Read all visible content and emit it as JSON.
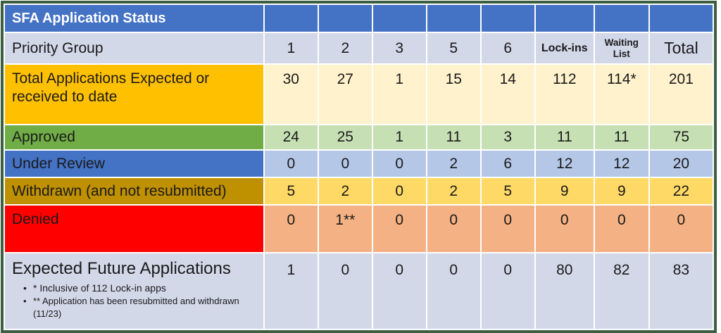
{
  "table": {
    "title": "SFA Application Status",
    "header": {
      "label": "Priority Group",
      "cols": [
        "1",
        "2",
        "3",
        "5",
        "6",
        "Lock-ins",
        "Waiting List",
        "Total"
      ]
    },
    "rows": [
      {
        "label": "Total Applications Expected or received to date",
        "values": [
          "30",
          "27",
          "1",
          "15",
          "14",
          "112",
          "114*",
          "201"
        ]
      },
      {
        "label": "Approved",
        "values": [
          "24",
          "25",
          "1",
          "11",
          "3",
          "11",
          "11",
          "75"
        ]
      },
      {
        "label": "Under Review",
        "values": [
          "0",
          "0",
          "0",
          "2",
          "6",
          "12",
          "12",
          "20"
        ]
      },
      {
        "label": "Withdrawn (and not resubmitted)",
        "values": [
          "5",
          "2",
          "0",
          "2",
          "5",
          "9",
          "9",
          "22"
        ]
      },
      {
        "label": "Denied",
        "values": [
          "0",
          "1**",
          "0",
          "0",
          "0",
          "0",
          "0",
          "0"
        ]
      },
      {
        "label": "Expected Future Applications",
        "values": [
          "1",
          "0",
          "0",
          "0",
          "0",
          "80",
          "82",
          "83"
        ]
      }
    ],
    "footnotes": [
      "* Inclusive of 112 Lock-in apps",
      "** Application has been resubmitted and withdrawn (11/23)"
    ],
    "colors": {
      "outer_border_green": "#3C5F41",
      "title_header_blue": "#4472C4",
      "lavender_row": "#D3D8E9",
      "total_label_amber": "#FFC000",
      "total_cell_cream": "#FFF2CC",
      "approved_label_green": "#70AD47",
      "approved_cell_green": "#C6E0B4",
      "review_label_blue": "#4472C4",
      "review_cell_blue": "#B4C7E7",
      "withdrawn_label_gold": "#BF9000",
      "withdrawn_cell_gold": "#FFD966",
      "denied_label_red": "#FF0000",
      "denied_cell_peach": "#F4B183",
      "gridline_white": "#FFFFFF",
      "title_text": "#FFFFFF",
      "body_text": "#1A1A1A"
    }
  },
  "chart_data": {
    "type": "table",
    "title": "SFA Application Status",
    "columns": [
      "Priority Group",
      "1",
      "2",
      "3",
      "5",
      "6",
      "Lock-ins",
      "Waiting List",
      "Total"
    ],
    "rows": [
      [
        "Total Applications Expected or received to date",
        30,
        27,
        1,
        15,
        14,
        112,
        "114*",
        201
      ],
      [
        "Approved",
        24,
        25,
        1,
        11,
        3,
        11,
        11,
        75
      ],
      [
        "Under Review",
        0,
        0,
        0,
        2,
        6,
        12,
        12,
        20
      ],
      [
        "Withdrawn (and not resubmitted)",
        5,
        2,
        0,
        2,
        5,
        9,
        9,
        22
      ],
      [
        "Denied",
        0,
        "1**",
        0,
        0,
        0,
        0,
        0,
        0
      ],
      [
        "Expected Future Applications",
        1,
        0,
        0,
        0,
        0,
        80,
        82,
        83
      ]
    ],
    "footnotes": [
      "* Inclusive of 112 Lock-in apps",
      "** Application has been resubmitted and withdrawn (11/23)"
    ],
    "legend_position": "none",
    "grid": "white gridlines between colored cells"
  }
}
